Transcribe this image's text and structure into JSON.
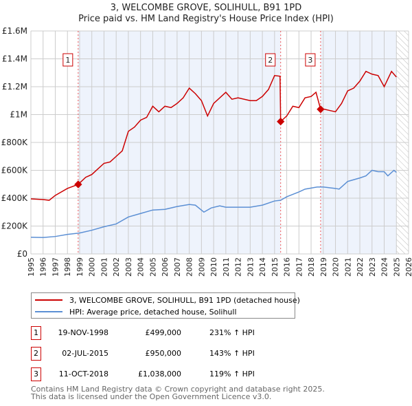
{
  "chart_data": {
    "type": "line",
    "title": "3, WELCOMBE GROVE, SOLIHULL, B91 1PD",
    "subtitle": "Price paid vs. HM Land Registry's House Price Index (HPI)",
    "xlim": [
      1995,
      2026
    ],
    "ylim": [
      0,
      1600000
    ],
    "x_ticks": [
      "1995",
      "1996",
      "1997",
      "1998",
      "1999",
      "2000",
      "2001",
      "2002",
      "2003",
      "2004",
      "2005",
      "2006",
      "2007",
      "2008",
      "2009",
      "2010",
      "2011",
      "2012",
      "2013",
      "2014",
      "2015",
      "2016",
      "2017",
      "2018",
      "2019",
      "2020",
      "2021",
      "2022",
      "2023",
      "2024",
      "2025",
      "2026"
    ],
    "y_ticks": [
      {
        "v": 0,
        "label": "£0"
      },
      {
        "v": 200000,
        "label": "£200K"
      },
      {
        "v": 400000,
        "label": "£400K"
      },
      {
        "v": 600000,
        "label": "£600K"
      },
      {
        "v": 800000,
        "label": "£800K"
      },
      {
        "v": 1000000,
        "label": "£1M"
      },
      {
        "v": 1200000,
        "label": "£1.2M"
      },
      {
        "v": 1400000,
        "label": "£1.4M"
      },
      {
        "v": 1600000,
        "label": "£1.6M"
      }
    ],
    "grid": true,
    "series": [
      {
        "name": "3, WELCOMBE GROVE, SOLIHULL, B91 1PD (detached house)",
        "color": "#cc0000",
        "x": [
          1995,
          1996,
          1996.5,
          1997,
          1998,
          1998.88,
          1999.5,
          2000,
          2000.5,
          2001,
          2001.5,
          2002,
          2002.5,
          2003,
          2003.5,
          2004,
          2004.5,
          2005,
          2005.5,
          2006,
          2006.5,
          2007,
          2007.5,
          2008,
          2008.5,
          2009,
          2009.5,
          2010,
          2011,
          2011.5,
          2012,
          2013,
          2013.5,
          2014,
          2014.5,
          2015,
          2015.45,
          2015.5,
          2016,
          2016.5,
          2017,
          2017.5,
          2018,
          2018.4,
          2018.78,
          2019,
          2019.5,
          2020,
          2020.5,
          2021,
          2021.5,
          2022,
          2022.5,
          2023,
          2023.5,
          2024,
          2024.6,
          2025
        ],
        "y": [
          395000,
          390000,
          385000,
          420000,
          470000,
          499000,
          550000,
          570000,
          610000,
          650000,
          660000,
          700000,
          740000,
          880000,
          910000,
          960000,
          980000,
          1060000,
          1020000,
          1060000,
          1050000,
          1080000,
          1120000,
          1190000,
          1150000,
          1100000,
          990000,
          1080000,
          1160000,
          1110000,
          1120000,
          1100000,
          1100000,
          1130000,
          1180000,
          1280000,
          1275000,
          950000,
          990000,
          1060000,
          1050000,
          1120000,
          1130000,
          1160000,
          1038000,
          1040000,
          1030000,
          1020000,
          1080000,
          1170000,
          1190000,
          1240000,
          1310000,
          1290000,
          1280000,
          1200000,
          1310000,
          1270000
        ]
      },
      {
        "name": "HPI: Average price, detached house, Solihull",
        "color": "#5b8fd4",
        "x": [
          1995,
          1996,
          1997,
          1998,
          1999,
          2000,
          2001,
          2002,
          2003,
          2004,
          2005,
          2006,
          2007,
          2008,
          2008.5,
          2009.2,
          2009.8,
          2010.5,
          2011,
          2012,
          2013,
          2014,
          2015,
          2015.5,
          2016,
          2017,
          2017.5,
          2018.5,
          2019,
          2020,
          2020.3,
          2021,
          2022,
          2022.5,
          2023,
          2023.5,
          2024,
          2024.3,
          2024.8,
          2025
        ],
        "y": [
          120000,
          118000,
          125000,
          140000,
          150000,
          170000,
          195000,
          215000,
          265000,
          290000,
          315000,
          320000,
          340000,
          355000,
          350000,
          300000,
          330000,
          345000,
          335000,
          335000,
          335000,
          350000,
          380000,
          385000,
          410000,
          445000,
          465000,
          480000,
          480000,
          470000,
          465000,
          520000,
          545000,
          560000,
          600000,
          590000,
          590000,
          560000,
          600000,
          585000
        ]
      }
    ],
    "sales": [
      {
        "n": "1",
        "x": 1998.88,
        "y": 499000
      },
      {
        "n": "2",
        "x": 2015.5,
        "y": 950000
      },
      {
        "n": "3",
        "x": 2018.78,
        "y": 1038000
      }
    ]
  },
  "legend": {
    "property": "3, WELCOMBE GROVE, SOLIHULL, B91 1PD (detached house)",
    "hpi": "HPI: Average price, detached house, Solihull"
  },
  "table": [
    {
      "n": "1",
      "date": "19-NOV-1998",
      "price": "£499,000",
      "hpi": "231% ↑ HPI"
    },
    {
      "n": "2",
      "date": "02-JUL-2015",
      "price": "£950,000",
      "hpi": "143% ↑ HPI"
    },
    {
      "n": "3",
      "date": "11-OCT-2018",
      "price": "£1,038,000",
      "hpi": "119% ↑ HPI"
    }
  ],
  "footer": {
    "line1": "Contains HM Land Registry data © Crown copyright and database right 2025.",
    "line2": "This data is licensed under the Open Government Licence v3.0."
  }
}
